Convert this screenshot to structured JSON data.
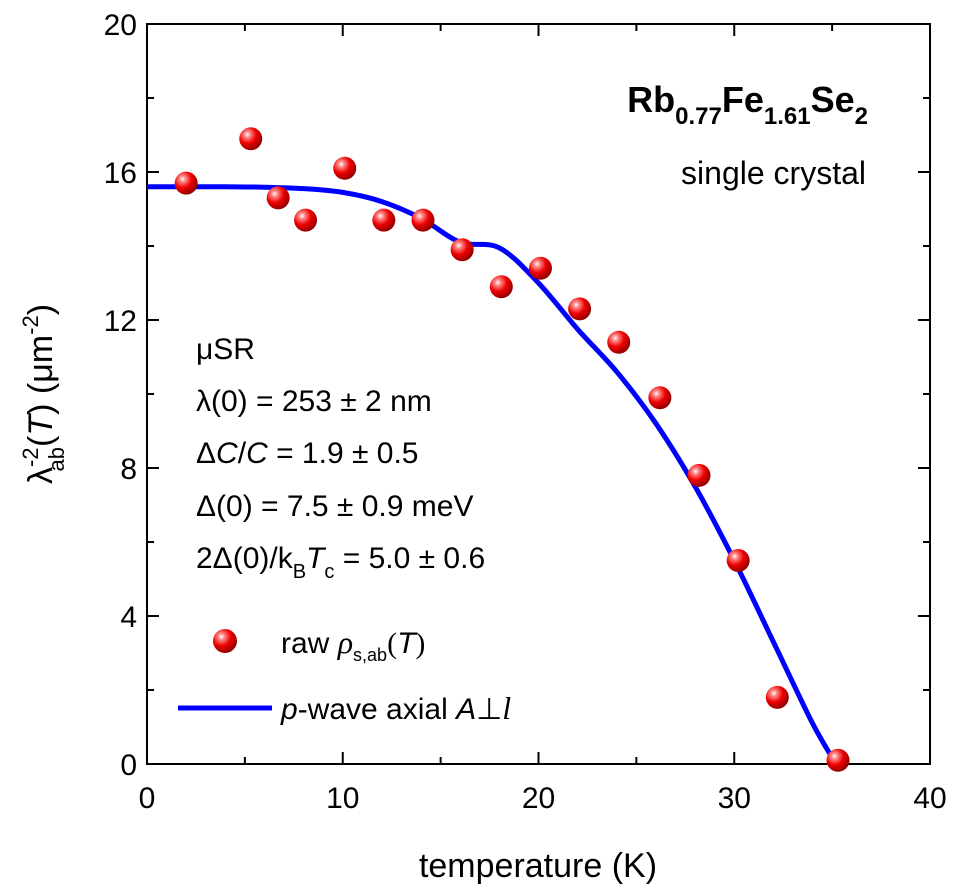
{
  "chart_data": {
    "type": "scatter",
    "xlabel": "temperature (K)",
    "ylabel": {
      "lambda": "λ",
      "exp": "-2",
      "sub": "ab",
      "paren_open": "(",
      "T": "T",
      "paren_close": ")",
      "unit_pre": " (μm",
      "unit_exp": "-2",
      "unit_post": ")"
    },
    "xlim": [
      0,
      40
    ],
    "ylim": [
      0,
      20
    ],
    "xticks": [
      0,
      10,
      20,
      30,
      40
    ],
    "yticks": [
      0,
      4,
      8,
      12,
      16,
      20
    ],
    "xtick_labels": [
      "0",
      "10",
      "20",
      "30",
      "40"
    ],
    "ytick_labels": [
      "0",
      "4",
      "8",
      "12",
      "16",
      "20"
    ],
    "grid": false,
    "legend_position": "bottom-left",
    "title": {
      "rb": "Rb",
      "rb_sub": "0.77",
      "fe": "Fe",
      "fe_sub": "1.61",
      "se": "Se",
      "se_sub": "2"
    },
    "subtitle": "single crystal",
    "annotations": {
      "method": "μSR",
      "lambda0": "λ(0) = 253 ± 2 nm",
      "dc_delta": "Δ",
      "dc_C1": "C",
      "dc_slash": "/",
      "dc_C2": "C",
      "dc_rest": " = 1.9 ± 0.5",
      "gap0": "Δ(0) = 7.5 ± 0.9 meV",
      "ratio_pre": "2Δ(0)/k",
      "ratio_sub_B": "B",
      "ratio_T": "T",
      "ratio_sub_c": "c",
      "ratio_rest": " = 5.0 ± 0.6"
    },
    "series": [
      {
        "name": "raw ρs,ab(T)",
        "legend": {
          "pre": "raw ",
          "rho": "ρ",
          "sub": "s,ab",
          "open": "(",
          "T": "T",
          "close": ")"
        },
        "type": "scatter",
        "color": "#ff0000",
        "x": [
          2.0,
          5.3,
          6.7,
          8.1,
          10.1,
          12.1,
          14.1,
          16.1,
          18.1,
          20.1,
          22.1,
          24.1,
          26.2,
          28.2,
          30.2,
          32.2,
          35.3
        ],
        "y": [
          15.7,
          16.9,
          15.3,
          14.7,
          16.1,
          14.7,
          14.7,
          13.9,
          12.9,
          13.4,
          12.3,
          11.4,
          9.9,
          7.8,
          5.5,
          1.8,
          0.1
        ]
      },
      {
        "name": "p-wave axial A⊥l",
        "legend": {
          "p": "p",
          "mid": "-wave axial ",
          "A": "A",
          "perp": "⊥",
          "l": "l"
        },
        "type": "line",
        "color": "#0000ff",
        "x": [
          0,
          2,
          4,
          6,
          8,
          10,
          12,
          14,
          16,
          18,
          20,
          22,
          24,
          26,
          28,
          30,
          32,
          34,
          35.2
        ],
        "y": [
          15.6,
          15.6,
          15.6,
          15.59,
          15.55,
          15.45,
          15.2,
          14.75,
          14.1,
          13.95,
          13.0,
          11.75,
          10.6,
          9.2,
          7.5,
          5.5,
          3.3,
          1.1,
          0.0
        ]
      }
    ]
  }
}
